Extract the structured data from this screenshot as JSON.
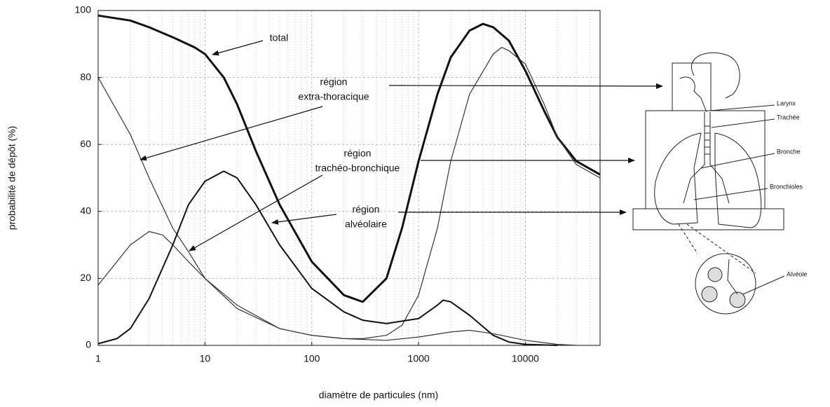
{
  "chart_data": {
    "type": "line",
    "xlabel": "diamètre de particules (nm)",
    "ylabel": "probabilité de dépôt (%)",
    "xscale": "log",
    "xlim": [
      1,
      50000
    ],
    "ylim": [
      0,
      100
    ],
    "xticks": [
      1,
      10,
      100,
      1000,
      10000
    ],
    "yticks": [
      0,
      20,
      40,
      60,
      80,
      100
    ],
    "grid": true,
    "minor_grid": true,
    "series": [
      {
        "color": "#111111",
        "x": [
          1,
          2,
          3,
          5,
          8,
          10,
          15,
          20,
          30,
          50,
          100,
          200,
          300,
          500,
          700,
          1000,
          1500,
          2000,
          3000,
          4000,
          5000,
          7000,
          10000,
          15000,
          20000,
          30000,
          50000
        ],
        "values": [
          98.5,
          97,
          95,
          92,
          89,
          87,
          80,
          72,
          58,
          42,
          25,
          15,
          13,
          20,
          35,
          55,
          75,
          86,
          94,
          96,
          95,
          91,
          82,
          70,
          62,
          55,
          51
        ]
      },
      {
        "color": "#333333",
        "x": [
          1,
          2,
          3,
          5,
          7,
          10,
          20,
          50,
          100,
          200,
          300,
          500,
          700,
          1000,
          1500,
          2000,
          3000,
          5000,
          6000,
          7000,
          10000,
          15000,
          20000,
          30000,
          50000
        ],
        "values": [
          80,
          63,
          50,
          35,
          28,
          20,
          11,
          5,
          3,
          2,
          2,
          3,
          6,
          15,
          35,
          55,
          75,
          87,
          89,
          88,
          84,
          72,
          62,
          54,
          50
        ]
      },
      {
        "color": "#333333",
        "x": [
          1,
          2,
          3,
          4,
          5,
          7,
          10,
          20,
          50,
          100,
          200,
          500,
          1000,
          2000,
          3000,
          5000,
          10000,
          20000,
          30000
        ],
        "values": [
          18,
          30,
          34,
          33,
          30,
          25,
          20,
          12,
          5,
          3,
          2,
          1.5,
          2.5,
          4,
          4.5,
          3.5,
          1.5,
          0.3,
          0
        ]
      },
      {
        "color": "#111111",
        "x": [
          1,
          1.5,
          2,
          3,
          5,
          7,
          10,
          15,
          20,
          30,
          50,
          100,
          200,
          300,
          500,
          1000,
          1500,
          1700,
          2000,
          3000,
          5000,
          7000,
          10000,
          20000
        ],
        "values": [
          0.5,
          2,
          5,
          14,
          30,
          42,
          49,
          52,
          50,
          42,
          30,
          17,
          10,
          7.5,
          6.5,
          8,
          12,
          13.5,
          13,
          9,
          3,
          1,
          0.3,
          0
        ]
      }
    ],
    "annotations": [
      {
        "lines": [
          "total"
        ]
      },
      {
        "lines": [
          "région",
          "extra-thoracique"
        ]
      },
      {
        "lines": [
          "région",
          "trachéo-bronchique"
        ]
      },
      {
        "lines": [
          "région",
          "alvéolaire"
        ]
      }
    ]
  },
  "illustration": {
    "labels": [
      "Larynx",
      "Trachée",
      "Bronche",
      "Bronchioles",
      "Alvéole"
    ]
  }
}
